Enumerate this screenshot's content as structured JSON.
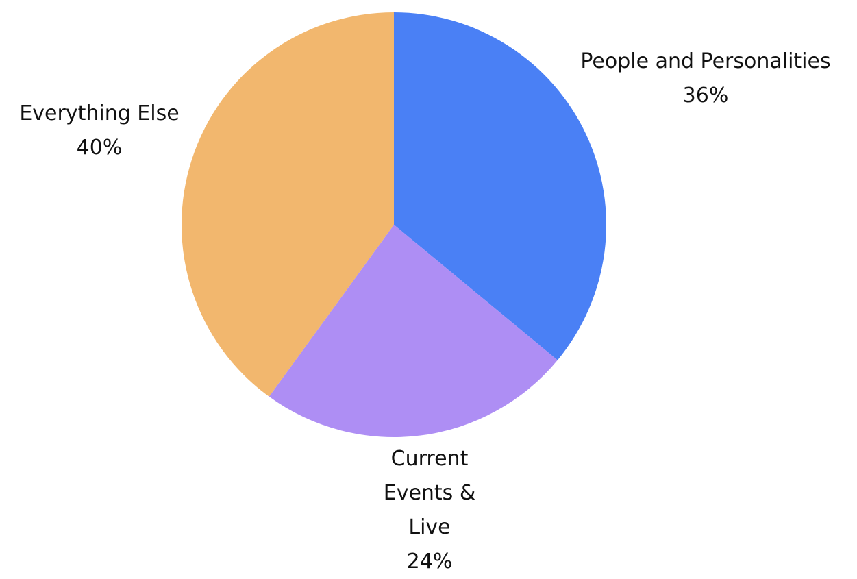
{
  "chart_data": {
    "type": "pie",
    "title": "",
    "slices": [
      {
        "label": "People and Personalities",
        "value": 36,
        "display": "36%",
        "color": "#4a80f5"
      },
      {
        "label": "Current Events & Live",
        "value": 24,
        "display": "24%",
        "color": "#ae8ef4"
      },
      {
        "label": "Everything Else",
        "value": 40,
        "display": "40%",
        "color": "#f2b76e"
      }
    ],
    "start_angle_deg": 0,
    "direction": "clockwise",
    "legend": "none",
    "labels_outside": true
  }
}
